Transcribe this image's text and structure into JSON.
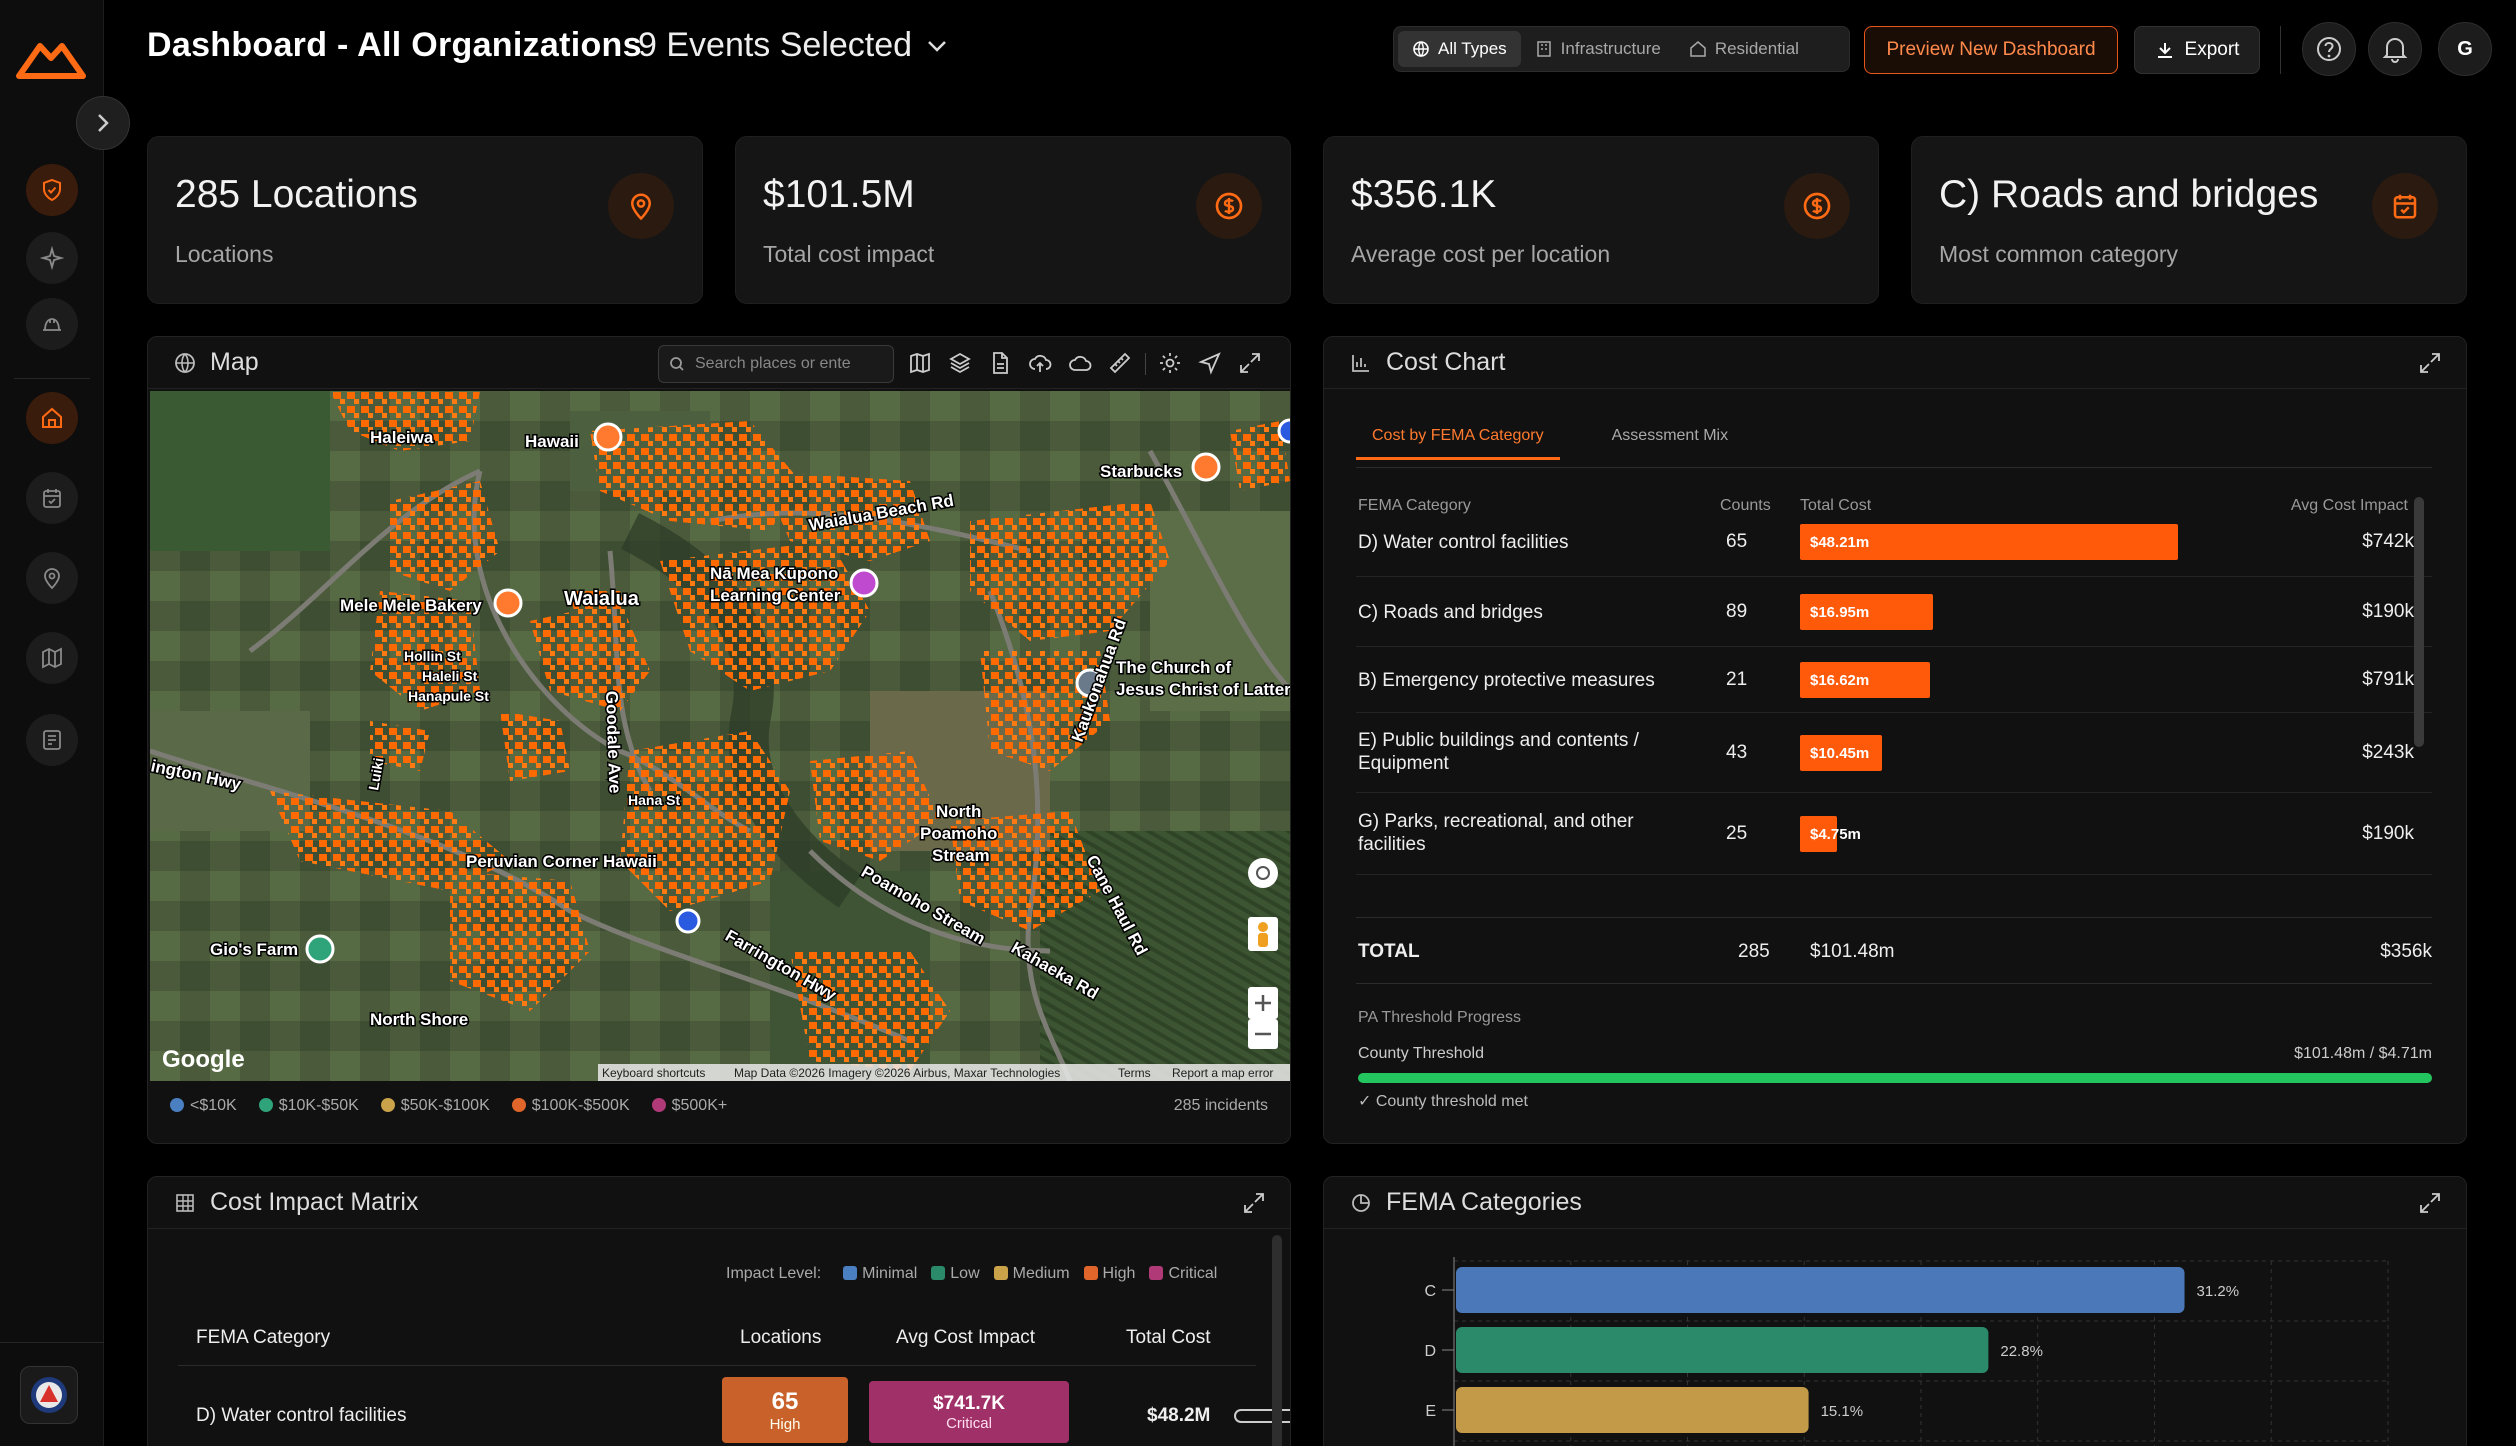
{
  "header": {
    "title": "Dashboard - All Organizations",
    "events": "9 Events Selected",
    "types": [
      "All Types",
      "Infrastructure",
      "Residential"
    ],
    "preview": "Preview New Dashboard",
    "export": "Export",
    "avatar": "G"
  },
  "kpis": [
    {
      "value": "285 Locations",
      "label": "Locations",
      "icon": "map-pin-icon"
    },
    {
      "value": "$101.5M",
      "label": "Total cost impact",
      "icon": "dollar-circle-icon"
    },
    {
      "value": "$356.1K",
      "label": "Average cost per location",
      "icon": "dollar-circle-icon"
    },
    {
      "value": "C) Roads and bridges",
      "label": "Most common category",
      "icon": "calendar-icon"
    }
  ],
  "map": {
    "title": "Map",
    "search_placeholder": "Search places or ente",
    "labels": [
      "Waialua Beach Rd",
      "Nā Mea Kūpono",
      "Learning Center",
      "Mele Mele Bakery",
      "Waialua",
      "Haleiwa",
      "Hawaii",
      "Starbucks",
      "The Church of",
      "Jesus Christ of Latter",
      "Goodale Ave",
      "Peruvian Corner Hawaii",
      "Gio's Farm",
      "North Shore",
      "North",
      "Poamoho",
      "Stream",
      "Poamoho Stream",
      "Farrington Hwy",
      "Kahaeka Rd",
      "Kaukonahua Rd",
      "Cane Haul Rd",
      "Hollin St",
      "Haleli St",
      "Hanapule St",
      "Hana St",
      "ington Hwy",
      "Luiki"
    ],
    "google": "Google",
    "attribution": [
      "Keyboard shortcuts",
      "Map Data ©2026 Imagery ©2026 Airbus, Maxar Technologies",
      "Terms",
      "Report a map error"
    ],
    "legend": [
      {
        "label": "<$10K",
        "color": "#4a7fc1"
      },
      {
        "label": "$10K-$50K",
        "color": "#2fa37a"
      },
      {
        "label": "$50K-$100K",
        "color": "#c9a24a"
      },
      {
        "label": "$100K-$500K",
        "color": "#e0652a"
      },
      {
        "label": "$500K+",
        "color": "#b03a78"
      }
    ],
    "incidents": "285 incidents"
  },
  "cost_chart": {
    "title": "Cost Chart",
    "tabs": [
      "Cost by FEMA Category",
      "Assessment Mix"
    ],
    "headers": [
      "FEMA Category",
      "Counts",
      "Total Cost",
      "Avg Cost Impact"
    ],
    "rows": [
      {
        "cat": "D) Water control facilities",
        "count": "65",
        "total": "$48.21m",
        "avg": "$742k",
        "value": 48.21
      },
      {
        "cat": "C) Roads and bridges",
        "count": "89",
        "total": "$16.95m",
        "avg": "$190k",
        "value": 16.95
      },
      {
        "cat": "B) Emergency protective measures",
        "count": "21",
        "total": "$16.62m",
        "avg": "$791k",
        "value": 16.62
      },
      {
        "cat": "E) Public buildings and contents / Equipment",
        "count": "43",
        "total": "$10.45m",
        "avg": "$243k",
        "value": 10.45
      },
      {
        "cat": "G) Parks, recreational, and other facilities",
        "count": "25",
        "total": "$4.75m",
        "avg": "$190k",
        "value": 4.75
      }
    ],
    "total": {
      "label": "TOTAL",
      "count": "285",
      "total": "$101.48m",
      "avg": "$356k"
    },
    "threshold_title": "PA Threshold Progress",
    "threshold_label": "County Threshold",
    "threshold_value": "$101.48m / $4.71m",
    "threshold_progress": 1.0,
    "threshold_met": "✓ County threshold met"
  },
  "matrix": {
    "title": "Cost Impact Matrix",
    "impact_label": "Impact Level:",
    "levels": [
      {
        "label": "Minimal",
        "color": "#4a7fc1"
      },
      {
        "label": "Low",
        "color": "#2a8a6a"
      },
      {
        "label": "Medium",
        "color": "#c9a24a"
      },
      {
        "label": "High",
        "color": "#e0652a"
      },
      {
        "label": "Critical",
        "color": "#b03a78"
      }
    ],
    "headers": [
      "FEMA Category",
      "Locations",
      "Avg Cost Impact",
      "Total Cost"
    ],
    "row": {
      "cat": "D) Water control facilities",
      "locations": "65",
      "loc_level": "High",
      "avg": "$741.7K",
      "avg_level": "Critical",
      "total": "$48.2M"
    }
  },
  "fema": {
    "title": "FEMA Categories",
    "chart_data": {
      "type": "bar",
      "orientation": "horizontal",
      "categories": [
        "C",
        "D",
        "E"
      ],
      "values": [
        31.2,
        22.8,
        15.1
      ],
      "labels": [
        "31.2%",
        "22.8%",
        "15.1%"
      ],
      "colors": [
        "#4a78b8",
        "#2a8a6a",
        "#c39a48"
      ],
      "xlim": [
        0,
        40
      ]
    }
  }
}
